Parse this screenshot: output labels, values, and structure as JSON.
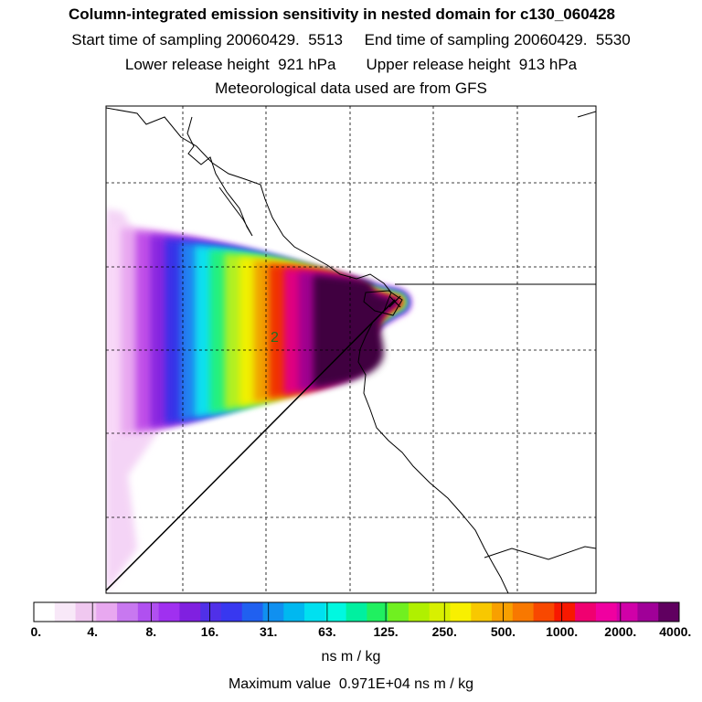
{
  "header": {
    "title": "Column-integrated emission sensitivity in nested domain for c130_060428",
    "line2": "Start time of sampling 20060429.  5513     End time of sampling 20060429.  5530",
    "line3": "Lower release height  921 hPa       Upper release height  913 hPa",
    "line4": "Meteorological data used are from GFS"
  },
  "map": {
    "contour_label": "2",
    "plume_colors": [
      "#f8d8f8",
      "#e8a8f0",
      "#c050e8",
      "#8828e0",
      "#3830e8",
      "#2080f0",
      "#10e0f0",
      "#20f080",
      "#b0f020",
      "#f0f000",
      "#f0a000",
      "#f03000",
      "#e00080",
      "#a00090",
      "#400040"
    ]
  },
  "legend": {
    "colors": [
      "#ffffff",
      "#f8e8f8",
      "#f0c8f0",
      "#e8a8f0",
      "#c878f0",
      "#b050f0",
      "#a030f0",
      "#8020e0",
      "#5030e8",
      "#3838f0",
      "#2060f0",
      "#1090f0",
      "#00b8f0",
      "#00e0f0",
      "#00f8e0",
      "#00f0a0",
      "#20f060",
      "#70f020",
      "#b0f000",
      "#d8f000",
      "#f8f000",
      "#f8c800",
      "#f8a000",
      "#f87800",
      "#f84800",
      "#f81800",
      "#f00070",
      "#f000a0",
      "#d000a8",
      "#a00098",
      "#600060"
    ],
    "tick_labels": [
      "0.",
      "4.",
      "8.",
      "16.",
      "31.",
      "63.",
      "125.",
      "250.",
      "500.",
      "1000.",
      "2000.",
      "4000."
    ],
    "units": "ns m / kg",
    "max_value": "Maximum value  0.971E+04 ns m / kg"
  }
}
